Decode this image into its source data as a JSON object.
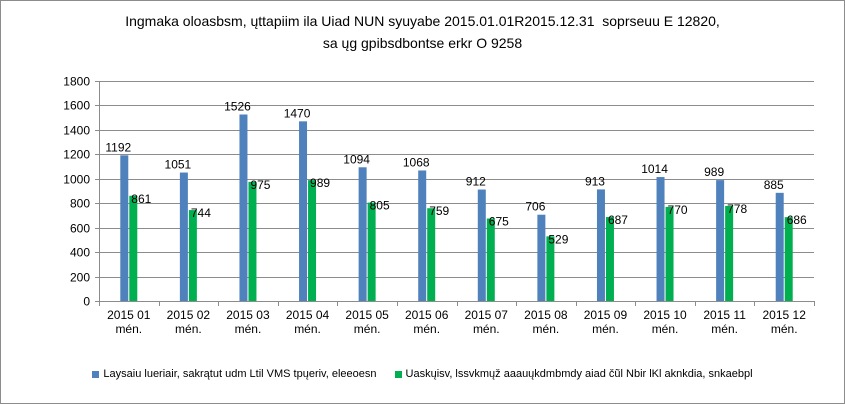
{
  "chart_data": {
    "type": "bar",
    "title_lines": [
      "Ingmaka oloasbsm, ųttapiim ila Uiad NUN syuyabe 2015.01.01R2015.12.31  soprseuu E 12820,",
      "sa ųg gpibsdbontse erkr O 9258"
    ],
    "categories": [
      [
        "2015 01",
        "mén."
      ],
      [
        "2015 02",
        "mén."
      ],
      [
        "2015 03",
        "mén."
      ],
      [
        "2015 04",
        "mén."
      ],
      [
        "2015 05",
        "mén."
      ],
      [
        "2015 06",
        "mén."
      ],
      [
        "2015 07",
        "mén."
      ],
      [
        "2015 08",
        "mén."
      ],
      [
        "2015 09",
        "mén."
      ],
      [
        "2015 10",
        "mén."
      ],
      [
        "2015 11",
        "mén."
      ],
      [
        "2015 12",
        "mén."
      ]
    ],
    "series": [
      {
        "name": "Laysaiu lueriair, sakrątut udm Ltil VMS tpųeriv, eleeoesn",
        "color": "#4f81bd",
        "values": [
          1192,
          1051,
          1526,
          1470,
          1094,
          1068,
          912,
          706,
          913,
          1014,
          989,
          885
        ]
      },
      {
        "name": "Uaskųisv, lssvkmųž aaauųkdmbmdy aiad čũl Nbir lKl aknkdia, snkaebpl",
        "color": "#00b050",
        "values": [
          861,
          744,
          975,
          989,
          805,
          759,
          675,
          529,
          687,
          770,
          778,
          686
        ]
      }
    ],
    "yticks": [
      0,
      200,
      400,
      600,
      800,
      1000,
      1200,
      1400,
      1600,
      1800
    ],
    "ylim": [
      0,
      1800
    ],
    "grid": true,
    "legend_position": "bottom"
  }
}
